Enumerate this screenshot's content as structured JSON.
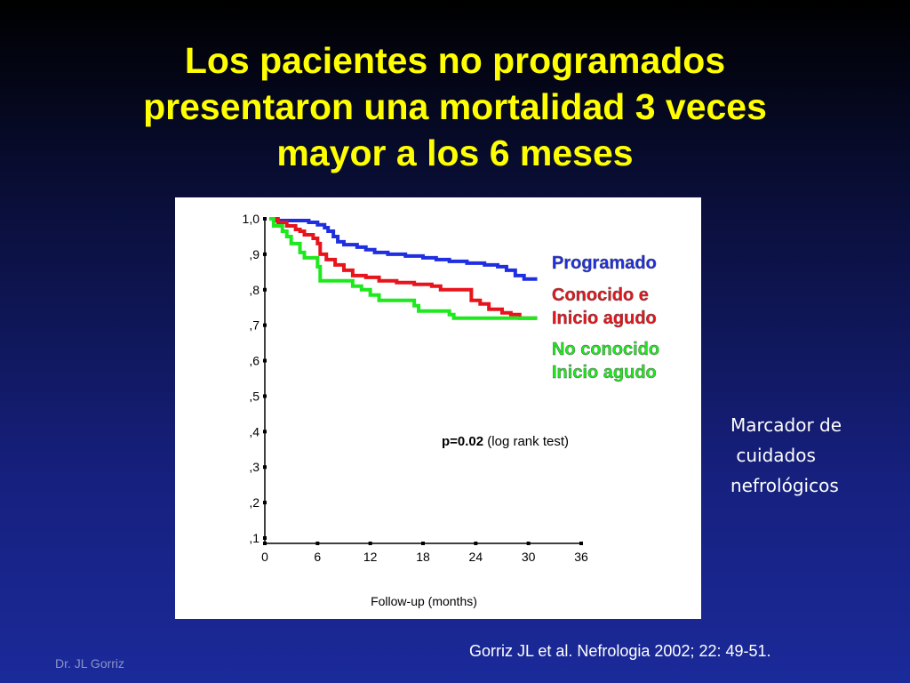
{
  "slide": {
    "title_lines": [
      "Los pacientes no programados",
      "presentaron una mortalidad 3 veces",
      "mayor a los 6 meses"
    ],
    "side_note_lines": [
      "Marcador de",
      " cuidados",
      "nefrológicos"
    ],
    "citation": "Gorriz JL et al. Nefrologia 2002; 22: 49-51.",
    "author": "Dr. JL Gorriz",
    "title_color": "#ffff00"
  },
  "chart_data": {
    "type": "line",
    "xlabel": "Follow-up (months)",
    "ylabel": "",
    "xlim": [
      0,
      36
    ],
    "ylim": [
      0.1,
      1.0
    ],
    "x_ticks": [
      "0",
      "6",
      "12",
      "18",
      "24",
      "30",
      "36"
    ],
    "y_ticks": [
      {
        "value": 1.0,
        "label": "1,0"
      },
      {
        "value": 0.9,
        "label": ",9"
      },
      {
        "value": 0.8,
        "label": ",8"
      },
      {
        "value": 0.7,
        "label": ",7"
      },
      {
        "value": 0.6,
        "label": ",6"
      },
      {
        "value": 0.5,
        "label": ",5"
      },
      {
        "value": 0.4,
        "label": ",4"
      },
      {
        "value": 0.3,
        "label": ",3"
      },
      {
        "value": 0.2,
        "label": ",2"
      },
      {
        "value": 0.1,
        "label": ",1"
      }
    ],
    "annotation": {
      "bold": "p=0.02",
      "text": " (log rank test)"
    },
    "grid": false,
    "legend_position": "right",
    "series": [
      {
        "name": "Programado",
        "legend_lines": [
          "Programado"
        ],
        "color": "#1f2fe0",
        "points": [
          [
            1,
            1.0
          ],
          [
            1.3,
            0.995
          ],
          [
            4.5,
            0.995
          ],
          [
            5,
            0.99
          ],
          [
            5.5,
            0.99
          ],
          [
            6,
            0.983
          ],
          [
            6.8,
            0.975
          ],
          [
            7.2,
            0.965
          ],
          [
            7.8,
            0.95
          ],
          [
            8.3,
            0.935
          ],
          [
            9,
            0.927
          ],
          [
            10.5,
            0.92
          ],
          [
            11.5,
            0.913
          ],
          [
            12.5,
            0.905
          ],
          [
            14,
            0.9
          ],
          [
            16,
            0.895
          ],
          [
            18,
            0.89
          ],
          [
            19.5,
            0.885
          ],
          [
            21,
            0.88
          ],
          [
            23,
            0.875
          ],
          [
            25,
            0.87
          ],
          [
            26.5,
            0.865
          ],
          [
            27.5,
            0.855
          ],
          [
            28.5,
            0.84
          ],
          [
            29.5,
            0.83
          ],
          [
            31,
            0.83
          ]
        ]
      },
      {
        "name": "Conocido e Inicio agudo",
        "legend_lines": [
          "Conocido e",
          "Inicio agudo"
        ],
        "color": "#e8141c",
        "points": [
          [
            1,
            1.0
          ],
          [
            1.5,
            0.99
          ],
          [
            2.5,
            0.98
          ],
          [
            3.5,
            0.97
          ],
          [
            4,
            0.965
          ],
          [
            4.5,
            0.955
          ],
          [
            5.5,
            0.945
          ],
          [
            6,
            0.93
          ],
          [
            6.3,
            0.9
          ],
          [
            7,
            0.885
          ],
          [
            8,
            0.87
          ],
          [
            9,
            0.855
          ],
          [
            10,
            0.84
          ],
          [
            11.5,
            0.835
          ],
          [
            13,
            0.825
          ],
          [
            15,
            0.82
          ],
          [
            17,
            0.815
          ],
          [
            19,
            0.81
          ],
          [
            20,
            0.8
          ],
          [
            23,
            0.8
          ],
          [
            23.5,
            0.77
          ],
          [
            24.5,
            0.76
          ],
          [
            25.5,
            0.745
          ],
          [
            27,
            0.735
          ],
          [
            28,
            0.73
          ],
          [
            29,
            0.72
          ],
          [
            31,
            0.72
          ]
        ]
      },
      {
        "name": "No conocido Inicio agudo",
        "legend_lines": [
          "No conocido",
          "Inicio agudo"
        ],
        "color": "#1ee81e",
        "points": [
          [
            0.5,
            1.0
          ],
          [
            1,
            0.98
          ],
          [
            2,
            0.965
          ],
          [
            2.5,
            0.95
          ],
          [
            3,
            0.93
          ],
          [
            4,
            0.905
          ],
          [
            4.5,
            0.89
          ],
          [
            6,
            0.865
          ],
          [
            6.3,
            0.825
          ],
          [
            9.5,
            0.825
          ],
          [
            10,
            0.81
          ],
          [
            11,
            0.8
          ],
          [
            12,
            0.785
          ],
          [
            13,
            0.77
          ],
          [
            16.5,
            0.77
          ],
          [
            17,
            0.755
          ],
          [
            17.5,
            0.74
          ],
          [
            21,
            0.73
          ],
          [
            21.5,
            0.72
          ],
          [
            31,
            0.72
          ]
        ]
      }
    ]
  }
}
